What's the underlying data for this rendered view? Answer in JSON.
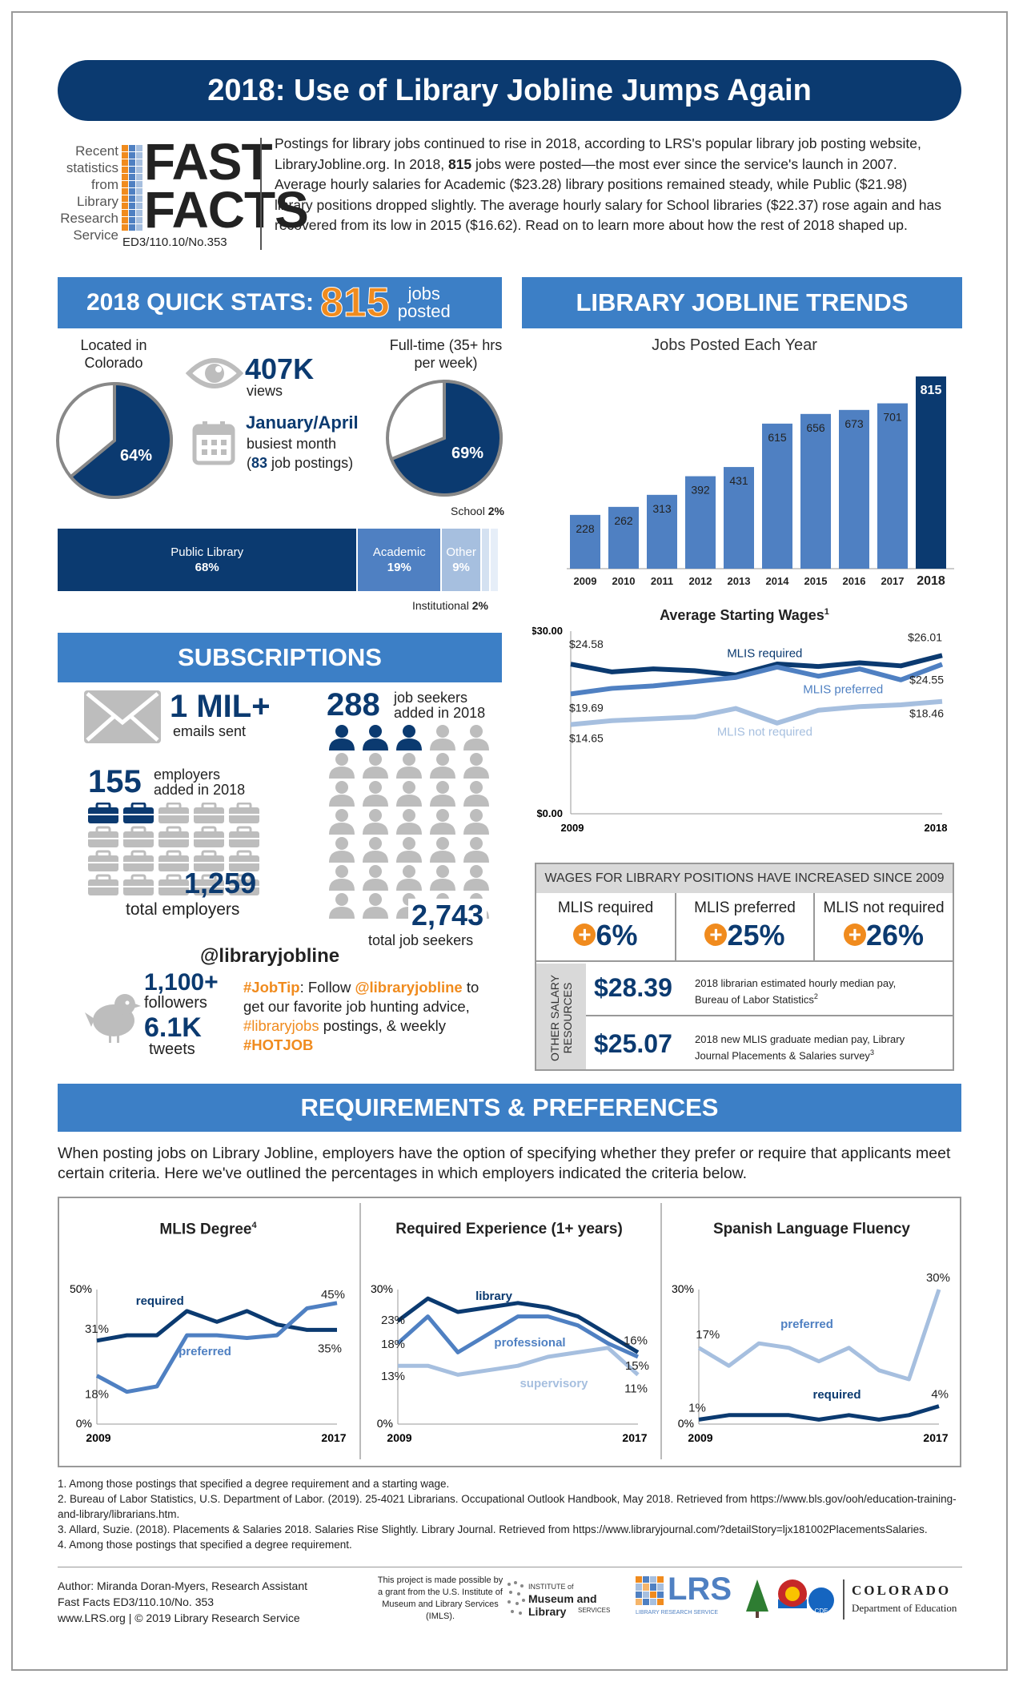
{
  "title": "2018: Use of Library Jobline Jumps Again",
  "fastfacts": {
    "side": [
      "Recent",
      "statistics",
      "from",
      "Library",
      "Research",
      "Service"
    ],
    "title1": "FAST",
    "title2": "FACTS",
    "id": "ED3/110.10/No.353",
    "intro_pre": "Postings for library jobs continued to rise in 2018, according to LRS's popular library job posting website, LibraryJobline.org. In 2018, ",
    "intro_bold": "815",
    "intro_post": " jobs were posted—the most ever since the service's launch in 2007. Average hourly salaries for Academic ($23.28) library positions remained steady, while Public ($21.98) library positions dropped slightly. The average hourly salary for School libraries ($22.37) rose again and has recovered from its low in 2015 ($16.62). Read on to learn more about how the rest of 2018 shaped up."
  },
  "quickstats": {
    "heading": "2018 QUICK STATS:",
    "number": "815",
    "unit1": "jobs",
    "unit2": "posted",
    "colorado_label1": "Located in",
    "colorado_label2": "Colorado",
    "colorado_pct_label": "64%",
    "colorado_pct": 0.64,
    "fulltime_label1": "Full-time (35+ hrs",
    "fulltime_label2": "per week)",
    "fulltime_pct_label": "69%",
    "fulltime_pct": 0.69,
    "views_num": "407K",
    "views_label": "views",
    "busiest_month": "January/April",
    "busiest_label": "busiest month",
    "busiest_paren_open": "(",
    "busiest_count": "83",
    "busiest_tail": " job postings)",
    "bar": [
      {
        "label": "Public Library",
        "pct": "68%",
        "value": 68
      },
      {
        "label": "Academic",
        "pct": "19%",
        "value": 19
      },
      {
        "label": "Other",
        "pct": "9%",
        "value": 9
      },
      {
        "label": "School",
        "pct": "2%",
        "value": 2
      },
      {
        "label": "Institutional",
        "pct": "2%",
        "value": 2
      }
    ],
    "colors": {
      "dark": "#0b3a70",
      "mid": "#4f80c2",
      "light": "#a6bfdf",
      "pale": "#d4e1f1",
      "accent": "#f08b1e"
    }
  },
  "trends": {
    "heading": "LIBRARY JOBLINE TRENDS",
    "chart_title": "Jobs Posted Each Year"
  },
  "wages": {
    "chart_title": "Average Starting Wages",
    "footnote_mark": "1",
    "y_top": "$30.00",
    "y_bottom": "$0.00",
    "x_start": "2009",
    "x_end": "2018",
    "labels": {
      "req_start": "$24.58",
      "req_end": "$26.01",
      "req_name": "MLIS required",
      "pref_start": "$19.69",
      "pref_end": "$24.55",
      "pref_name": "MLIS preferred",
      "notreq_start": "$14.65",
      "notreq_end": "$18.46",
      "notreq_name": "MLIS not required"
    }
  },
  "increase_table": {
    "heading": "WAGES FOR LIBRARY POSITIONS HAVE INCREASED SINCE 2009",
    "cols": [
      {
        "label": "MLIS required",
        "value": "6%"
      },
      {
        "label": "MLIS preferred",
        "value": "25%"
      },
      {
        "label": "MLIS not required",
        "value": "26%"
      }
    ],
    "side_label1": "OTHER SALARY",
    "side_label2": "RESOURCES",
    "rows": [
      {
        "value": "$28.39",
        "text1": "2018 librarian estimated hourly median pay,",
        "text2": "Bureau of Labor Statistics",
        "sup": "2"
      },
      {
        "value": "$25.07",
        "text1": "2018 new MLIS graduate median pay, Library",
        "text2": "Journal Placements & Salaries survey",
        "sup": "3"
      }
    ]
  },
  "subscriptions": {
    "heading": "SUBSCRIPTIONS",
    "emails_num": "1 MIL+",
    "emails_label": "emails sent",
    "employers_num": "155",
    "employers_label1": "employers",
    "employers_label2": "added in 2018",
    "total_employers_num": "1,259",
    "total_employers_label": "total employers",
    "seekers_num": "288",
    "seekers_label1": "job seekers",
    "seekers_label2": "added in 2018",
    "total_seekers_num": "2,743",
    "total_seekers_label": "total job seekers",
    "handle": "@libraryjobline",
    "followers_num": "1,100+",
    "followers_label": "followers",
    "tweets_num": "6.1K",
    "tweets_label": "tweets",
    "tip_tag": "#JobTip",
    "tip_t1": ": Follow ",
    "tip_handle": "@libraryjobline",
    "tip_t2": " to get our favorite job hunting advice, ",
    "tip_tag2": "#libraryjobs",
    "tip_t3": " postings, & weekly ",
    "tip_tag3": "#HOTJOB"
  },
  "requirements": {
    "heading": "REQUIREMENTS & PREFERENCES",
    "intro": "When posting jobs on Library Jobline, employers have the option of specifying whether they prefer or require that applicants meet certain criteria. Here we've outlined the percentages in which employers indicated the criteria below.",
    "c1": {
      "title": "MLIS Degree",
      "sup": "4",
      "ytop": "50%",
      "ybot": "0%",
      "x0": "2009",
      "x1": "2017",
      "l_req": "required",
      "l_pref": "preferred",
      "a": "31%",
      "b": "18%",
      "c": "45%",
      "d": "35%"
    },
    "c2": {
      "title": "Required Experience (1+ years)",
      "ytop": "30%",
      "ybot": "0%",
      "x0": "2009",
      "x1": "2017",
      "l_lib": "library",
      "l_prof": "professional",
      "l_sup": "supervisory",
      "a": "23%",
      "b": "18%",
      "c": "13%",
      "d": "16%",
      "e": "15%",
      "f": "11%"
    },
    "c3": {
      "title": "Spanish Language Fluency",
      "ytop": "30%",
      "ybot": "0%",
      "x0": "2009",
      "x1": "2017",
      "l_pref": "preferred",
      "l_req": "required",
      "a": "17%",
      "b": "1%",
      "c": "30%",
      "d": "4%"
    }
  },
  "chart_data": [
    {
      "type": "bar",
      "title": "Jobs Posted Each Year",
      "categories": [
        "2009",
        "2010",
        "2011",
        "2012",
        "2013",
        "2014",
        "2015",
        "2016",
        "2017",
        "2018"
      ],
      "values": [
        228,
        262,
        313,
        392,
        431,
        615,
        656,
        673,
        701,
        815
      ]
    },
    {
      "type": "line",
      "title": "Average Starting Wages",
      "x": [
        "2009",
        "2010",
        "2011",
        "2012",
        "2013",
        "2014",
        "2015",
        "2016",
        "2017",
        "2018"
      ],
      "ylim": [
        0,
        30
      ],
      "series": [
        {
          "name": "MLIS required",
          "values": [
            24.58,
            23.3,
            23.8,
            23.5,
            22.8,
            24.6,
            24.2,
            24.8,
            24.3,
            26.01
          ]
        },
        {
          "name": "MLIS preferred",
          "values": [
            19.69,
            20.6,
            21.0,
            21.7,
            22.4,
            24.1,
            22.6,
            23.8,
            22.0,
            24.55
          ]
        },
        {
          "name": "MLIS not required",
          "values": [
            14.65,
            15.3,
            15.6,
            15.9,
            17.3,
            14.9,
            17.0,
            17.6,
            17.9,
            18.46
          ]
        }
      ]
    },
    {
      "type": "line",
      "title": "MLIS Degree",
      "x": [
        "2009",
        "2010",
        "2011",
        "2012",
        "2013",
        "2014",
        "2015",
        "2016",
        "2017"
      ],
      "ylim": [
        0,
        50
      ],
      "series": [
        {
          "name": "required",
          "values": [
            31,
            33,
            33,
            42,
            38,
            42,
            37,
            35,
            35
          ]
        },
        {
          "name": "preferred",
          "values": [
            18,
            12,
            14,
            33,
            33,
            32,
            33,
            43,
            45
          ]
        }
      ]
    },
    {
      "type": "line",
      "title": "Required Experience (1+ years)",
      "x": [
        "2009",
        "2010",
        "2011",
        "2012",
        "2013",
        "2014",
        "2015",
        "2016",
        "2017"
      ],
      "ylim": [
        0,
        30
      ],
      "series": [
        {
          "name": "library",
          "values": [
            23,
            28,
            25,
            26,
            27,
            26,
            24,
            20,
            16
          ]
        },
        {
          "name": "professional",
          "values": [
            18,
            24,
            16,
            20,
            24,
            24,
            22,
            18,
            15
          ]
        },
        {
          "name": "supervisory",
          "values": [
            13,
            13,
            11,
            12,
            13,
            15,
            16,
            17,
            11
          ]
        }
      ]
    },
    {
      "type": "line",
      "title": "Spanish Language Fluency",
      "x": [
        "2009",
        "2010",
        "2011",
        "2012",
        "2013",
        "2014",
        "2015",
        "2016",
        "2017"
      ],
      "ylim": [
        0,
        30
      ],
      "series": [
        {
          "name": "preferred",
          "values": [
            17,
            13,
            18,
            17,
            14,
            17,
            12,
            10,
            30
          ]
        },
        {
          "name": "required",
          "values": [
            1,
            2,
            2,
            2,
            1,
            2,
            1,
            2,
            4
          ]
        }
      ]
    }
  ],
  "footnotes": [
    "1. Among those postings that specified a degree requirement and a starting wage.",
    "2. Bureau of Labor Statistics, U.S. Department of Labor. (2019). 25-4021 Librarians. Occupational Outlook Handbook, May 2018. Retrieved from https://www.bls.gov/ooh/education-training-and-library/librarians.htm.",
    "3. Allard, Suzie. (2018). Placements & Salaries 2018. Salaries Rise Slightly. Library Journal. Retrieved from https://www.libraryjournal.com/?detailStory=ljx181002PlacementsSalaries.",
    "4. Among those postings that specified a degree requirement."
  ],
  "footer": {
    "author": "Author: Miranda Doran-Myers, Research Assistant",
    "id": "Fast Facts ED3/110.10/No. 353",
    "site": "www.LRS.org | © 2019 Library Research Service",
    "grant": "This project is made possible by a grant from the U.S. Institute of Museum and Library Services (IMLS).",
    "imls1": "INSTITUTE of",
    "imls2": "Museum and Library",
    "imls3": "SERVICES",
    "lrs": "LRS",
    "lrs_sub": "LIBRARY RESEARCH SERVICE",
    "cde": "CDE",
    "colorado": "COLORADO",
    "dept": "Department of Education"
  }
}
